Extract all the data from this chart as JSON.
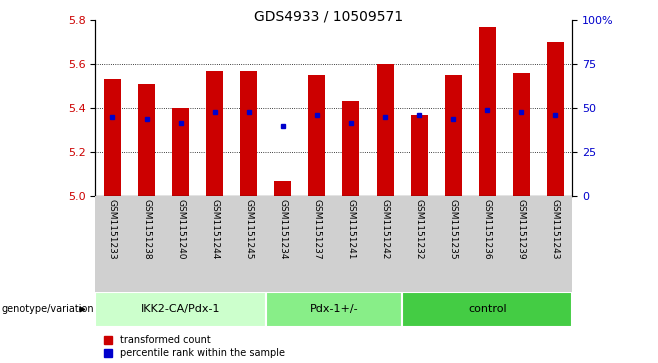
{
  "title": "GDS4933 / 10509571",
  "samples": [
    "GSM1151233",
    "GSM1151238",
    "GSM1151240",
    "GSM1151244",
    "GSM1151245",
    "GSM1151234",
    "GSM1151237",
    "GSM1151241",
    "GSM1151242",
    "GSM1151232",
    "GSM1151235",
    "GSM1151236",
    "GSM1151239",
    "GSM1151243"
  ],
  "bar_values": [
    5.53,
    5.51,
    5.4,
    5.57,
    5.57,
    5.07,
    5.55,
    5.43,
    5.6,
    5.37,
    5.55,
    5.77,
    5.56,
    5.7
  ],
  "blue_values": [
    5.36,
    5.35,
    5.33,
    5.38,
    5.38,
    5.32,
    5.37,
    5.33,
    5.36,
    5.37,
    5.35,
    5.39,
    5.38,
    5.37
  ],
  "bar_color": "#cc0000",
  "blue_color": "#0000cc",
  "ymin": 5.0,
  "ymax": 5.8,
  "y2min": 0,
  "y2max": 100,
  "yticks": [
    5.0,
    5.2,
    5.4,
    5.6,
    5.8
  ],
  "y2ticks": [
    0,
    25,
    50,
    75,
    100
  ],
  "grid_lines": [
    5.2,
    5.4,
    5.6
  ],
  "groups": [
    {
      "label": "IKK2-CA/Pdx-1",
      "start": 0,
      "end": 5,
      "color": "#ccffcc"
    },
    {
      "label": "Pdx-1+/-",
      "start": 5,
      "end": 9,
      "color": "#88ee88"
    },
    {
      "label": "control",
      "start": 9,
      "end": 14,
      "color": "#44cc44"
    }
  ],
  "genotype_label": "genotype/variation",
  "legend_red": "transformed count",
  "legend_blue": "percentile rank within the sample",
  "bar_color_hex": "#cc0000",
  "blue_color_hex": "#0000cc",
  "left_tick_color": "#cc0000",
  "right_tick_color": "#0000cc",
  "names_bg": "#d0d0d0",
  "plot_bg": "#ffffff",
  "fig_bg": "#ffffff"
}
